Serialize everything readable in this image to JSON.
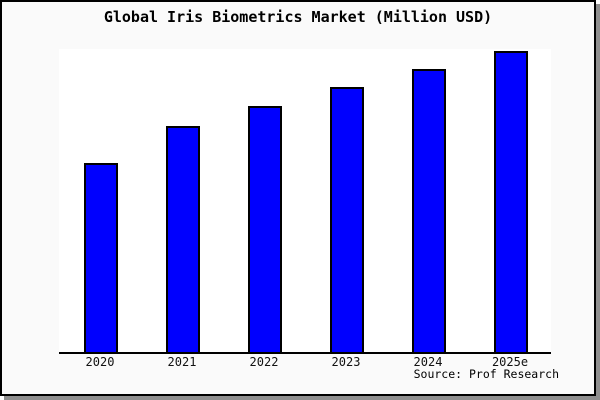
{
  "title": "Global Iris Biometrics Market (Million USD)",
  "source_label": "Source: Prof Research",
  "colors": {
    "bar_fill": "#0000fe",
    "bar_border": "#000000",
    "frame_background": "#fafafa",
    "plot_background": "#ffffff",
    "frame_border": "#000000",
    "frame_shadow": "#8f8f8f"
  },
  "chart_data": {
    "type": "bar",
    "title": "Global Iris Biometrics Market (Million USD)",
    "xlabel": "",
    "ylabel": "",
    "categories": [
      "2020",
      "2021",
      "2022",
      "2023",
      "2024",
      "2025e"
    ],
    "values": [
      189,
      226,
      246,
      265,
      283,
      301
    ],
    "values_unit": "relative-pixel-height",
    "y_axis_tick_labels_visible": false,
    "grid": false,
    "legend": null,
    "annotations": [
      "Source: Prof Research"
    ],
    "note": "Y-axis is unlabeled in the screenshot; values are relative bar heights measured in pixels (axis baseline = 0)."
  }
}
